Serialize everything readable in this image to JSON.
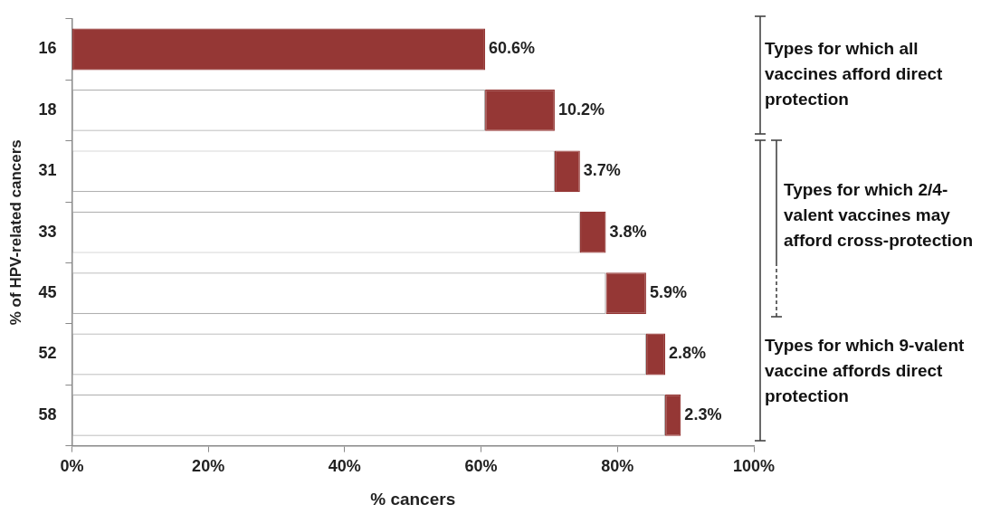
{
  "chart_data": {
    "type": "bar",
    "orientation": "horizontal",
    "stacked": true,
    "categories": [
      "16",
      "18",
      "31",
      "33",
      "45",
      "52",
      "58"
    ],
    "series": [
      {
        "color": "#ffffff",
        "values": [
          0,
          60.6,
          70.8,
          74.5,
          78.3,
          84.2,
          87.0
        ]
      },
      {
        "color": "#953735",
        "values": [
          60.6,
          10.2,
          3.7,
          3.8,
          5.9,
          2.8,
          2.3
        ],
        "value_labels": [
          "60.6%",
          "10.2%",
          "3.7%",
          "3.8%",
          "5.9%",
          "2.8%",
          "2.3%"
        ]
      }
    ],
    "xlim": [
      0,
      100
    ],
    "xticks": [
      {
        "value": 0,
        "label": "0%"
      },
      {
        "value": 20,
        "label": "20%"
      },
      {
        "value": 40,
        "label": "40%"
      },
      {
        "value": 60,
        "label": "60%"
      },
      {
        "value": 80,
        "label": "80%"
      },
      {
        "value": 100,
        "label": "100%"
      }
    ],
    "xlabel": "% cancers",
    "ylabel": "% of HPV-related cancers",
    "annotations": [
      "Types for which all vaccines afford direct protection",
      "Types for which 2/4-valent vaccines may afford cross-protection",
      "Types for which 9-valent vaccine affords direct protection"
    ],
    "grid": false,
    "legend": false
  }
}
